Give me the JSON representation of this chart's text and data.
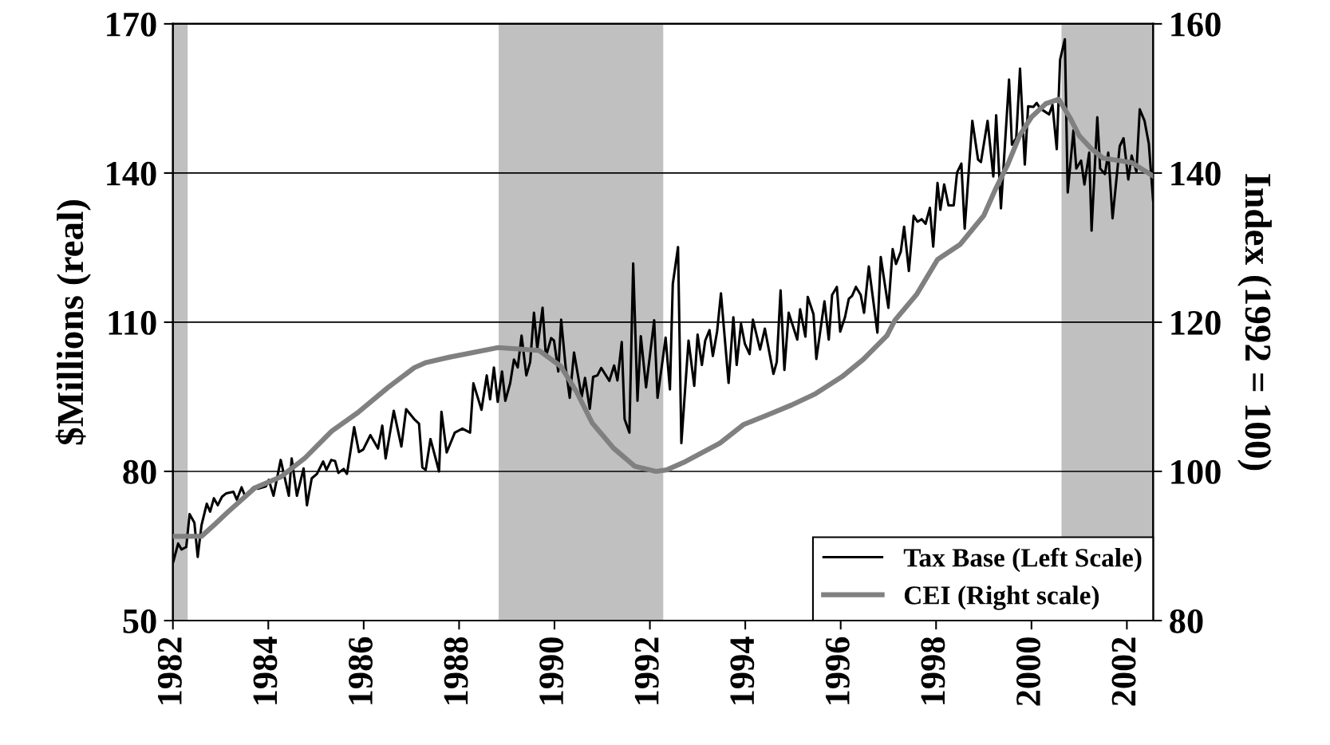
{
  "chart_data": {
    "type": "line",
    "ylabel": "$Millions (real)",
    "y2label": "Index (1992 = 100)",
    "xlim": [
      1982,
      2002.55
    ],
    "xticks": [
      1982,
      1984,
      1986,
      1988,
      1990,
      1992,
      1994,
      1996,
      1998,
      2000,
      2002
    ],
    "ylim": [
      50,
      170
    ],
    "yticks": [
      50,
      80,
      110,
      140,
      170
    ],
    "y2lim": [
      80,
      160
    ],
    "y2ticks": [
      80,
      100,
      120,
      140,
      160
    ],
    "grid": "y",
    "legend": "bottom right",
    "line_style": "solid",
    "marker": "none",
    "bands": [
      {
        "axis": "x",
        "from": 1982.0,
        "to": 1982.31,
        "color": "#c0c0c0"
      },
      {
        "axis": "x",
        "from": 1988.83,
        "to": 1992.28,
        "color": "#c0c0c0"
      },
      {
        "axis": "x",
        "from": 2000.63,
        "to": 2002.55,
        "color": "#c0c0c0"
      }
    ],
    "series": [
      {
        "name": "Tax Base (Left Scale)",
        "color": "#000000",
        "x": [
          1982.01,
          1982.11,
          1982.18,
          1982.28,
          1982.35,
          1982.45,
          1982.52,
          1982.6,
          1982.71,
          1982.78,
          1982.86,
          1982.94,
          1983.03,
          1983.12,
          1983.27,
          1983.34,
          1983.44,
          1983.51,
          1983.69,
          1983.78,
          1983.95,
          1984.01,
          1984.11,
          1984.26,
          1984.43,
          1984.49,
          1984.6,
          1984.74,
          1984.81,
          1984.91,
          1985.02,
          1985.15,
          1985.22,
          1985.32,
          1985.4,
          1985.47,
          1985.58,
          1985.65,
          1985.8,
          1985.9,
          1985.99,
          1986.14,
          1986.3,
          1986.39,
          1986.46,
          1986.63,
          1986.79,
          1986.89,
          1987.06,
          1987.16,
          1987.23,
          1987.3,
          1987.4,
          1987.58,
          1987.63,
          1987.74,
          1987.91,
          1988.07,
          1988.23,
          1988.3,
          1988.47,
          1988.58,
          1988.65,
          1988.73,
          1988.81,
          1988.9,
          1988.97,
          1989.07,
          1989.15,
          1989.23,
          1989.31,
          1989.41,
          1989.49,
          1989.57,
          1989.64,
          1989.75,
          1989.82,
          1989.93,
          1989.99,
          1990.08,
          1990.14,
          1990.24,
          1990.32,
          1990.41,
          1990.57,
          1990.64,
          1990.74,
          1990.81,
          1990.9,
          1990.98,
          1991.15,
          1991.25,
          1991.32,
          1991.41,
          1991.47,
          1991.57,
          1991.65,
          1991.74,
          1991.81,
          1991.92,
          1992.09,
          1992.16,
          1992.33,
          1992.42,
          1992.48,
          1992.59,
          1992.66,
          1992.81,
          1992.93,
          1993.0,
          1993.09,
          1993.16,
          1993.25,
          1993.32,
          1993.41,
          1993.49,
          1993.65,
          1993.75,
          1993.82,
          1993.91,
          1993.99,
          1994.09,
          1994.16,
          1994.31,
          1994.41,
          1994.59,
          1994.66,
          1994.74,
          1994.82,
          1994.91,
          1995.09,
          1995.15,
          1995.26,
          1995.31,
          1995.43,
          1995.49,
          1995.66,
          1995.75,
          1995.82,
          1995.92,
          1995.99,
          1996.09,
          1996.17,
          1996.24,
          1996.32,
          1996.42,
          1996.49,
          1996.59,
          1996.77,
          1996.84,
          1997.0,
          1997.09,
          1997.16,
          1997.26,
          1997.33,
          1997.43,
          1997.53,
          1997.61,
          1997.7,
          1997.78,
          1997.87,
          1997.94,
          1998.03,
          1998.09,
          1998.17,
          1998.26,
          1998.37,
          1998.44,
          1998.53,
          1998.6,
          1998.76,
          1998.88,
          1998.94,
          1999.08,
          1999.2,
          1999.26,
          1999.36,
          1999.53,
          1999.59,
          1999.68,
          1999.76,
          1999.86,
          1999.93,
          2000.04,
          2000.11,
          2000.18,
          2000.37,
          2000.44,
          2000.53,
          2000.6,
          2000.7,
          2000.76,
          2000.88,
          2000.94,
          2001.04,
          2001.11,
          2001.21,
          2001.26,
          2001.38,
          2001.44,
          2001.54,
          2001.61,
          2001.7,
          2001.85,
          2001.93,
          2002.03,
          2002.1,
          2002.2,
          2002.27,
          2002.37,
          2002.46,
          2002.55
        ],
        "values": [
          61.9,
          65.5,
          64.3,
          64.8,
          71.4,
          69.7,
          62.8,
          69.2,
          73.5,
          71.9,
          74.6,
          73.2,
          74.9,
          75.6,
          75.9,
          74.3,
          76.8,
          75.1,
          76.8,
          76.5,
          77,
          78.3,
          75.1,
          82.3,
          75.1,
          82.6,
          75.1,
          80.6,
          73.2,
          78.6,
          79.5,
          82,
          80.3,
          82.3,
          82.1,
          79.7,
          80.5,
          79.5,
          88.9,
          83.9,
          84.4,
          87.3,
          84.6,
          89.2,
          82.6,
          92.2,
          85,
          92.5,
          90.5,
          89.6,
          80.8,
          80.3,
          86.5,
          80,
          92,
          83.8,
          87.8,
          88.6,
          87.8,
          97.7,
          92.4,
          99.3,
          94.5,
          100.9,
          94,
          100.1,
          94.2,
          97.7,
          102.5,
          100.9,
          107.3,
          99.3,
          102,
          111.9,
          104.7,
          112.9,
          103.1,
          106.8,
          106.3,
          100.1,
          110.5,
          100.4,
          94.8,
          103.9,
          95,
          98.8,
          92.6,
          99,
          99.3,
          100.8,
          98.2,
          101.3,
          98.3,
          106,
          90.5,
          87.8,
          121.8,
          94.2,
          107.2,
          96.9,
          110.4,
          94.8,
          106.9,
          96.5,
          117.7,
          125.1,
          85.7,
          106.3,
          97.2,
          107.5,
          101.4,
          106.3,
          108.4,
          103.2,
          108.2,
          115.8,
          97.8,
          111,
          101.4,
          109.7,
          105.7,
          103.6,
          110.5,
          104.5,
          108.7,
          99.6,
          102,
          116.4,
          100.4,
          111.9,
          106.5,
          112.6,
          107.1,
          115.1,
          111.6,
          102.6,
          114.2,
          106.5,
          115.5,
          117.1,
          108.1,
          111,
          114.7,
          115.3,
          117.1,
          115.5,
          111.9,
          121.2,
          107.9,
          123.1,
          112.9,
          124.7,
          121.7,
          124.2,
          129.2,
          120.3,
          131.4,
          130.2,
          130.7,
          129.8,
          133,
          125.2,
          138,
          132.6,
          137.7,
          133.5,
          133.5,
          140.1,
          141.9,
          128.8,
          150.5,
          142.7,
          142.2,
          150.5,
          139.3,
          151.6,
          132.9,
          158.8,
          145.7,
          147,
          161,
          141.7,
          153.4,
          153.3,
          154.1,
          153,
          151.8,
          153.7,
          144.8,
          162.8,
          166.9,
          136.1,
          148.6,
          140.9,
          142.5,
          137.7,
          144.1,
          128.4,
          151.2,
          140.9,
          139.8,
          144.1,
          130.9,
          145.4,
          147,
          138.7,
          143.5,
          140.3,
          152.8,
          150.5,
          145.9,
          134.5
        ]
      },
      {
        "name": "CEI (Right scale)",
        "color": "#808080",
        "axis": "y2",
        "x": [
          1982.01,
          1982.6,
          1982.86,
          1983.16,
          1983.72,
          1984.27,
          1984.77,
          1985.33,
          1985.88,
          1986.5,
          1987.06,
          1987.31,
          1987.79,
          1988.82,
          1989.68,
          1990.13,
          1990.46,
          1990.79,
          1991.24,
          1991.68,
          1992.13,
          1992.35,
          1992.74,
          1993.0,
          1993.47,
          1993.97,
          1994.44,
          1994.97,
          1995.47,
          1996.03,
          1996.47,
          1996.97,
          1997.14,
          1997.59,
          1998.03,
          1998.5,
          1999.0,
          1999.25,
          1999.5,
          1999.75,
          2000.0,
          2000.3,
          2000.57,
          2000.8,
          2001.0,
          2001.25,
          2001.5,
          2001.8,
          2002.1,
          2002.3,
          2002.55
        ],
        "values": [
          91.3,
          91.3,
          92.8,
          94.6,
          97.8,
          99.3,
          101.8,
          105.4,
          107.9,
          111.2,
          113.9,
          114.6,
          115.3,
          116.6,
          116.2,
          114.1,
          110.7,
          106.5,
          103.1,
          100.7,
          100,
          100.2,
          101.3,
          102.2,
          103.8,
          106.3,
          107.5,
          108.9,
          110.4,
          112.7,
          115,
          118.2,
          120.3,
          123.7,
          128.4,
          130.4,
          134.3,
          137.9,
          141.1,
          145,
          147.5,
          149.3,
          149.9,
          147.5,
          145,
          143.3,
          142,
          141.7,
          141.4,
          140.6,
          139.6
        ]
      }
    ]
  }
}
